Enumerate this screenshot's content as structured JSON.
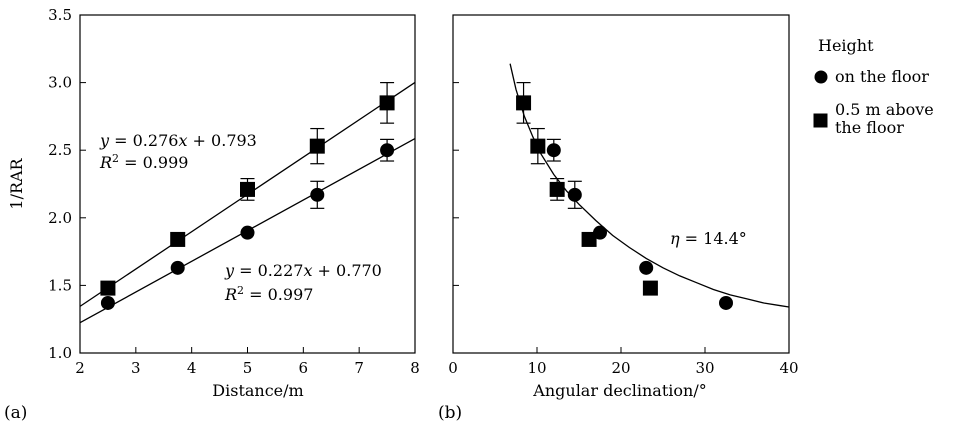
{
  "colors": {
    "ink": "#000000",
    "background": "#ffffff"
  },
  "legend": {
    "title": "Height",
    "items": [
      {
        "label_lines": [
          "on the floor"
        ],
        "marker": "circle"
      },
      {
        "label_lines": [
          "0.5 m above",
          "the floor"
        ],
        "marker": "square"
      }
    ]
  },
  "chart_data": [
    {
      "panel": "(a)",
      "type": "scatter",
      "xlabel": "Distance/m",
      "ylabel": "1/RAR",
      "xlim": [
        2,
        8
      ],
      "ylim": [
        1.0,
        3.5
      ],
      "xticks": [
        2,
        3,
        4,
        5,
        6,
        7,
        8
      ],
      "yticks": [
        1.0,
        1.5,
        2.0,
        2.5,
        3.0,
        3.5
      ],
      "ytick_labels": [
        "1.0",
        "1.5",
        "2.0",
        "2.5",
        "3.0",
        "3.5"
      ],
      "grid": false,
      "series": [
        {
          "name": "on the floor",
          "marker": "circle",
          "x": [
            2.5,
            3.75,
            5.0,
            6.25,
            7.5
          ],
          "y": [
            1.37,
            1.63,
            1.89,
            2.17,
            2.5
          ],
          "yerr": [
            0,
            0,
            0,
            0.1,
            0.08
          ],
          "fit": {
            "slope": 0.227,
            "intercept": 0.77,
            "x_range": [
              2.0,
              8.0
            ]
          },
          "annotation": {
            "line1": "y = 0.227x + 0.770",
            "line2": "R² = 0.997"
          }
        },
        {
          "name": "0.5 m above the floor",
          "marker": "square",
          "x": [
            2.5,
            3.75,
            5.0,
            6.25,
            7.5
          ],
          "y": [
            1.48,
            1.84,
            2.21,
            2.53,
            2.85
          ],
          "yerr": [
            0,
            0,
            0.08,
            0.13,
            0.15
          ],
          "fit": {
            "slope": 0.276,
            "intercept": 0.793,
            "x_range": [
              2.0,
              8.0
            ]
          },
          "annotation": {
            "line1": "y = 0.276x + 0.793",
            "line2": "R² = 0.999"
          }
        }
      ]
    },
    {
      "panel": "(b)",
      "type": "scatter",
      "xlabel": "Angular declination/°",
      "ylabel": "",
      "xlim": [
        0,
        40
      ],
      "ylim": [
        1.0,
        3.5
      ],
      "xticks": [
        0,
        10,
        20,
        30,
        40
      ],
      "yticks": [
        1.0,
        1.5,
        2.0,
        2.5,
        3.0,
        3.5
      ],
      "grid": false,
      "series": [
        {
          "name": "on the floor",
          "marker": "circle",
          "x": [
            32.5,
            23.0,
            17.5,
            14.5,
            12.0
          ],
          "y": [
            1.37,
            1.63,
            1.89,
            2.17,
            2.5
          ],
          "yerr": [
            0,
            0,
            0,
            0.1,
            0.08
          ]
        },
        {
          "name": "0.5 m above the floor",
          "marker": "square",
          "x": [
            23.5,
            16.2,
            12.4,
            10.1,
            8.4
          ],
          "y": [
            1.48,
            1.84,
            2.21,
            2.53,
            2.85
          ],
          "yerr": [
            0,
            0,
            0.08,
            0.13,
            0.15
          ]
        }
      ],
      "curve": {
        "x": [
          6.8,
          7.5,
          8.5,
          9.5,
          10.5,
          12,
          13.5,
          15,
          17,
          19,
          21,
          23,
          25,
          27,
          29,
          31,
          33,
          35,
          37,
          39,
          40
        ],
        "y": [
          3.14,
          2.95,
          2.75,
          2.6,
          2.47,
          2.32,
          2.2,
          2.1,
          1.98,
          1.87,
          1.78,
          1.7,
          1.63,
          1.57,
          1.52,
          1.47,
          1.43,
          1.4,
          1.37,
          1.35,
          1.34
        ]
      },
      "annotation": {
        "text": "η = 14.4°"
      }
    }
  ],
  "panel_labels": [
    "(a)",
    "(b)"
  ]
}
